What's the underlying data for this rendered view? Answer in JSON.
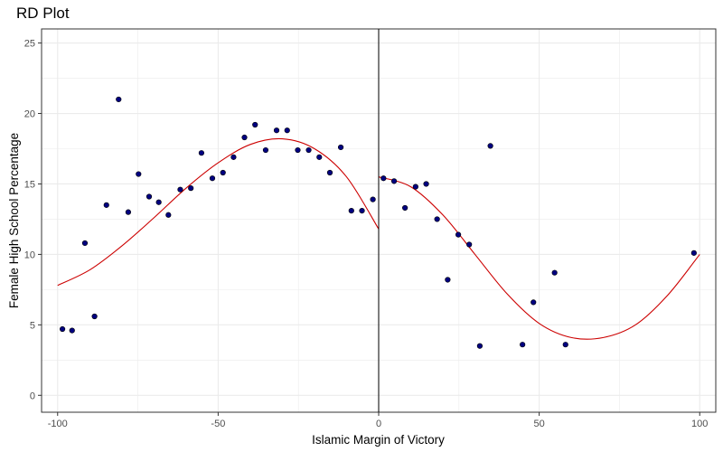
{
  "chart_data": {
    "type": "scatter",
    "title": "RD Plot",
    "xlabel": "Islamic Margin of Victory",
    "ylabel": "Female High School Percentage",
    "xlim": [
      -105,
      105
    ],
    "ylim": [
      -1.2,
      26
    ],
    "xticks": [
      -100,
      -50,
      0,
      50,
      100
    ],
    "yticks": [
      0,
      5,
      10,
      15,
      20,
      25
    ],
    "grid": true,
    "cutoff": 0,
    "colors": {
      "points": "#000080",
      "fit": "#cc0000",
      "grid": "#ebebeb",
      "border": "#333333",
      "cutoff": "#000000"
    },
    "points": [
      [
        -98.5,
        4.7
      ],
      [
        -95.5,
        4.6
      ],
      [
        -91.5,
        10.8
      ],
      [
        -88.5,
        5.6
      ],
      [
        -84.8,
        13.5
      ],
      [
        -81,
        21.0
      ],
      [
        -78,
        13.0
      ],
      [
        -74.8,
        15.7
      ],
      [
        -71.5,
        14.1
      ],
      [
        -68.5,
        13.7
      ],
      [
        -65.5,
        12.8
      ],
      [
        -61.8,
        14.6
      ],
      [
        -58.5,
        14.7
      ],
      [
        -55.2,
        17.2
      ],
      [
        -51.8,
        15.4
      ],
      [
        -48.5,
        15.8
      ],
      [
        -45.2,
        16.9
      ],
      [
        -41.8,
        18.3
      ],
      [
        -38.5,
        19.2
      ],
      [
        -35.2,
        17.4
      ],
      [
        -31.8,
        18.8
      ],
      [
        -28.5,
        18.8
      ],
      [
        -25.2,
        17.4
      ],
      [
        -21.8,
        17.4
      ],
      [
        -18.5,
        16.9
      ],
      [
        -15.2,
        15.8
      ],
      [
        -11.8,
        17.6
      ],
      [
        -8.5,
        13.1
      ],
      [
        -5.2,
        13.1
      ],
      [
        -1.8,
        13.9
      ],
      [
        1.5,
        15.4
      ],
      [
        4.8,
        15.2
      ],
      [
        8.2,
        13.3
      ],
      [
        11.5,
        14.8
      ],
      [
        14.8,
        15.0
      ],
      [
        18.2,
        12.5
      ],
      [
        21.5,
        8.2
      ],
      [
        24.8,
        11.4
      ],
      [
        28.2,
        10.7
      ],
      [
        31.5,
        3.5
      ],
      [
        34.8,
        17.7
      ],
      [
        44.8,
        3.6
      ],
      [
        48.2,
        6.6
      ],
      [
        54.8,
        8.7
      ],
      [
        58.2,
        3.6
      ],
      [
        98.2,
        10.1
      ]
    ],
    "fit_left": [
      [
        -100,
        7.8
      ],
      [
        -90,
        8.9
      ],
      [
        -80,
        10.6
      ],
      [
        -70,
        12.6
      ],
      [
        -60,
        14.7
      ],
      [
        -50,
        16.5
      ],
      [
        -40,
        17.8
      ],
      [
        -30,
        18.2
      ],
      [
        -20,
        17.5
      ],
      [
        -10,
        15.5
      ],
      [
        0,
        11.8
      ]
    ],
    "fit_right": [
      [
        0,
        15.5
      ],
      [
        10,
        14.8
      ],
      [
        20,
        12.8
      ],
      [
        30,
        10.0
      ],
      [
        40,
        7.2
      ],
      [
        50,
        5.1
      ],
      [
        60,
        4.1
      ],
      [
        70,
        4.1
      ],
      [
        80,
        5.0
      ],
      [
        90,
        7.1
      ],
      [
        100,
        10.0
      ]
    ]
  }
}
